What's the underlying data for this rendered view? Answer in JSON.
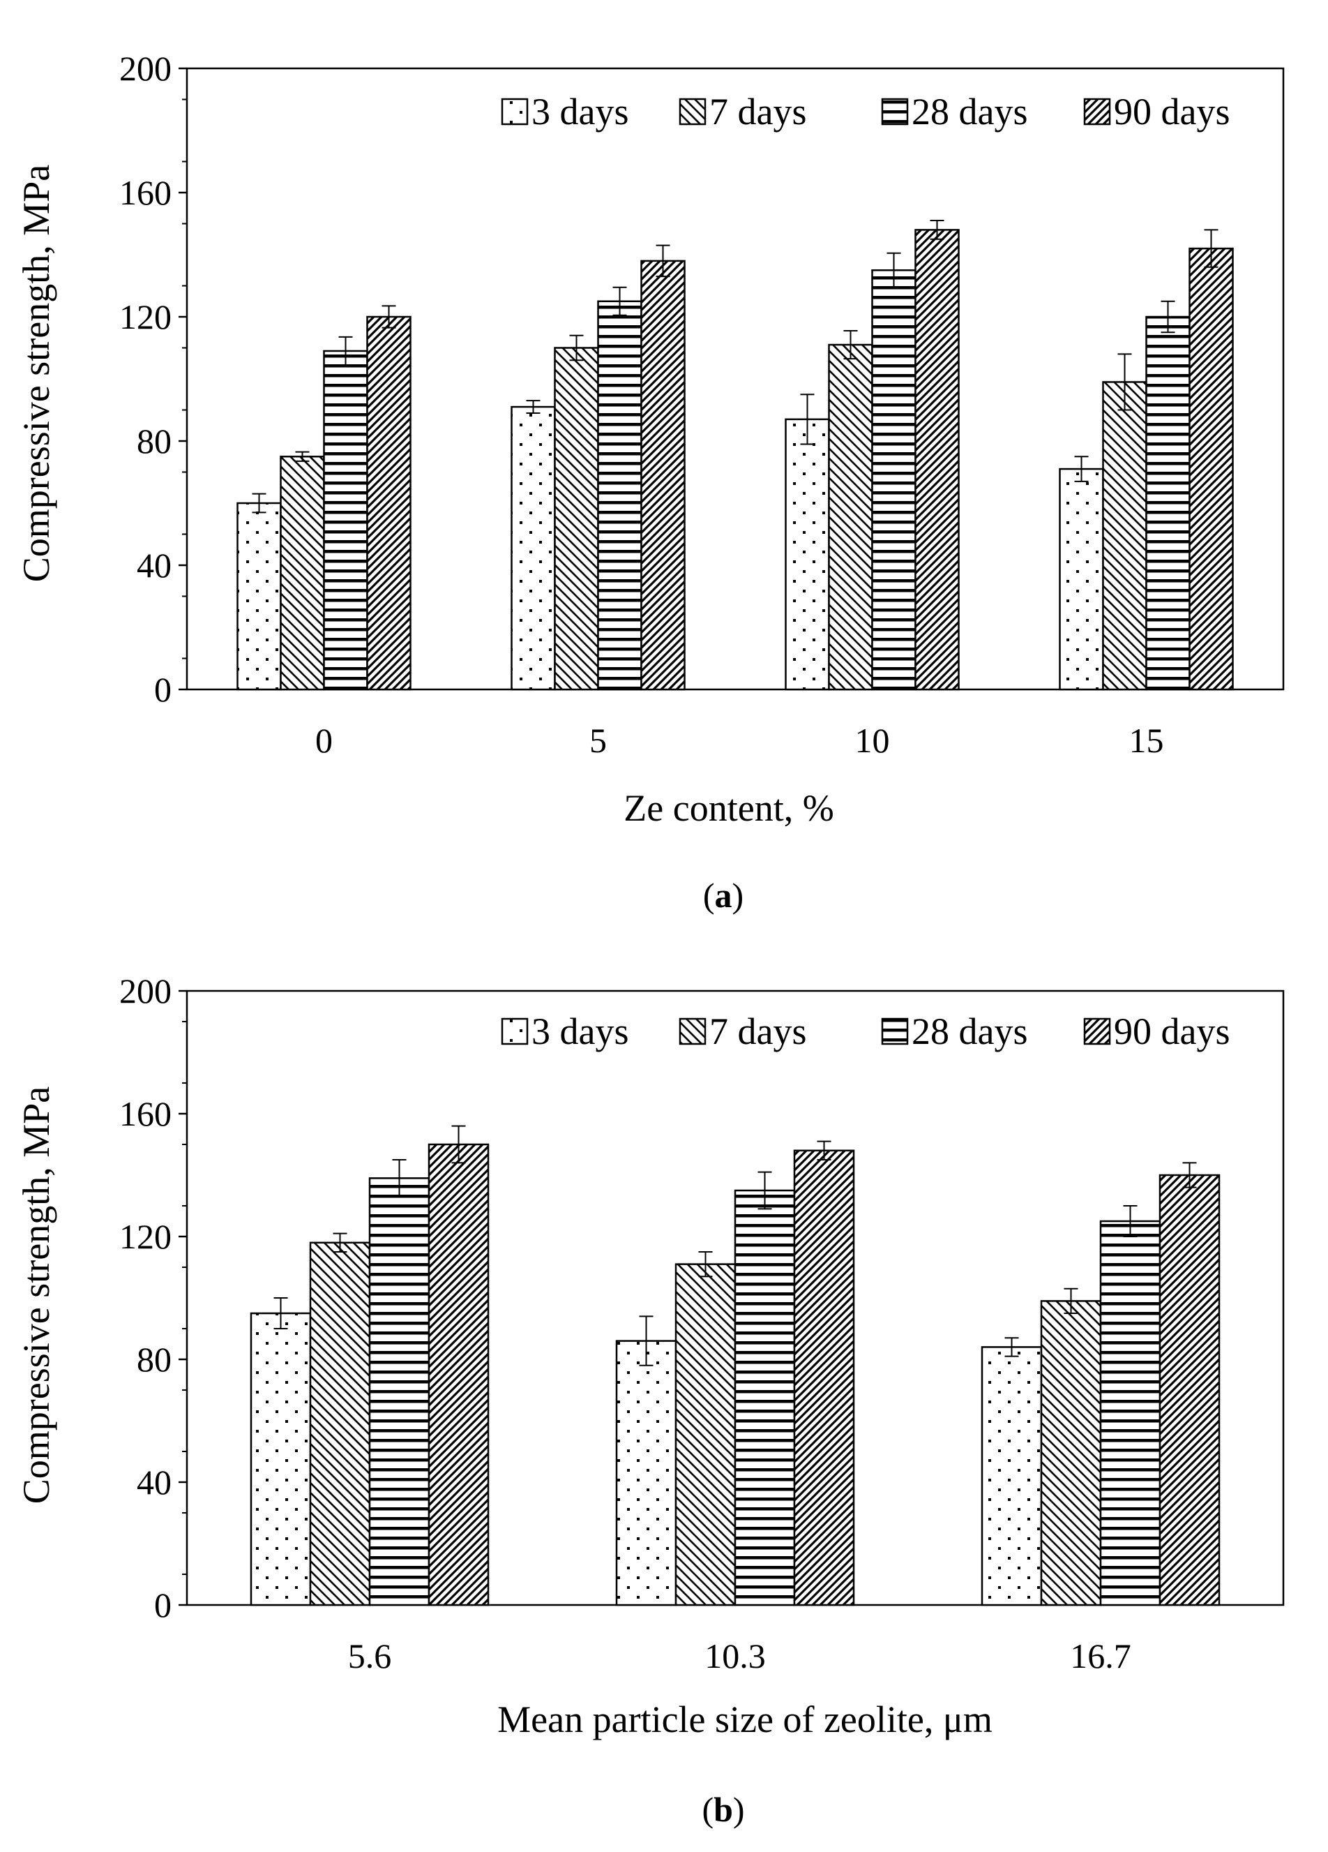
{
  "panels": [
    {
      "caption_open": "(",
      "caption_letter": "a",
      "caption_close": ")",
      "chart_data": {
        "type": "bar",
        "title": "",
        "xlabel": "Ze content, %",
        "ylabel": "Compressive strength, MPa",
        "categories": [
          "0",
          "5",
          "10",
          "15"
        ],
        "ylim": [
          0,
          200
        ],
        "yticks": [
          "0",
          "40",
          "80",
          "120",
          "160",
          "200"
        ],
        "grid": false,
        "legend_position": "top-right",
        "series": [
          {
            "name": "3 days",
            "pattern": "dots",
            "values": [
              60,
              91,
              87,
              71
            ],
            "errors": [
              3,
              2,
              8,
              4
            ]
          },
          {
            "name": "7 days",
            "pattern": "diag-back",
            "values": [
              75,
              110,
              111,
              99
            ],
            "errors": [
              1.5,
              4,
              4.5,
              9
            ]
          },
          {
            "name": "28 days",
            "pattern": "horizontal",
            "values": [
              109,
              125,
              135,
              120
            ],
            "errors": [
              4.5,
              4.5,
              5.5,
              5
            ]
          },
          {
            "name": "90 days",
            "pattern": "diag-dense",
            "values": [
              120,
              138,
              148,
              142
            ],
            "errors": [
              3.5,
              5,
              3,
              6
            ]
          }
        ]
      }
    },
    {
      "caption_open": "(",
      "caption_letter": "b",
      "caption_close": ")",
      "chart_data": {
        "type": "bar",
        "title": "",
        "xlabel": "Mean particle size of zeolite, μm",
        "ylabel": "Compressive strength, MPa",
        "categories": [
          "5.6",
          "10.3",
          "16.7"
        ],
        "ylim": [
          0,
          200
        ],
        "yticks": [
          "0",
          "40",
          "80",
          "120",
          "160",
          "200"
        ],
        "grid": false,
        "legend_position": "top-right",
        "series": [
          {
            "name": "3 days",
            "pattern": "dots",
            "values": [
              95,
              86,
              84
            ],
            "errors": [
              5,
              8,
              3
            ]
          },
          {
            "name": "7 days",
            "pattern": "diag-back",
            "values": [
              118,
              111,
              99
            ],
            "errors": [
              3,
              4,
              4
            ]
          },
          {
            "name": "28 days",
            "pattern": "horizontal",
            "values": [
              139,
              135,
              125
            ],
            "errors": [
              6,
              6,
              5
            ]
          },
          {
            "name": "90 days",
            "pattern": "diag-dense",
            "values": [
              150,
              148,
              140
            ],
            "errors": [
              6,
              3,
              4
            ]
          }
        ]
      }
    }
  ]
}
